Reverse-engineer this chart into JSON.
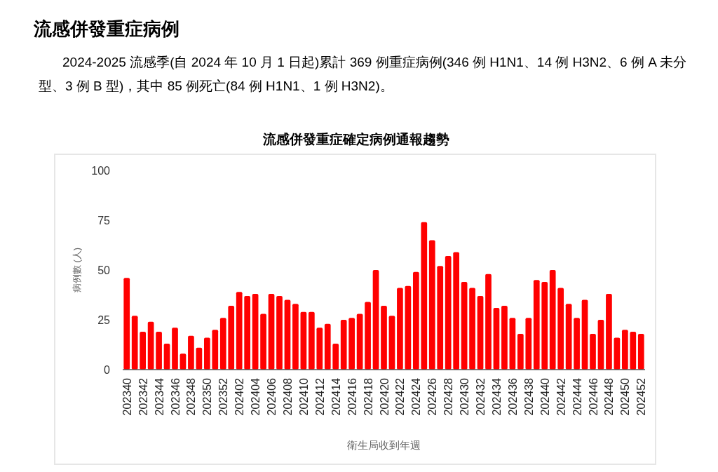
{
  "chart_data": {
    "type": "bar",
    "title": "流感併發重症確定病例通報趨勢",
    "annotations": [
      "流感併發重症病例",
      "2024-2025 流感季(自 2024 年 10 月 1 日起)累計 369 例重症病例(346 例 H1N1、14 例 H3N2、6 例 A 未分型、3 例 B 型)，其中 85 例死亡(84 例 H1N1、1 例 H3N2)。"
    ],
    "xlabel": "衛生局收到年週",
    "ylabel": "病例數 (人)",
    "categories": [
      "202340",
      null,
      "202342",
      null,
      "202344",
      null,
      "202346",
      null,
      "202348",
      null,
      "202350",
      null,
      "202352",
      null,
      "202402",
      null,
      "202404",
      null,
      "202406",
      null,
      "202408",
      null,
      "202410",
      null,
      "202412",
      null,
      "202414",
      null,
      "202416",
      null,
      "202418",
      null,
      "202420",
      null,
      "202422",
      null,
      "202424",
      null,
      "202426",
      null,
      "202428",
      null,
      "202430",
      null,
      "202432",
      null,
      "202434",
      null,
      "202436",
      null,
      "202438",
      null,
      "202440",
      null,
      "202442",
      null,
      "202444",
      null,
      "202446",
      null,
      "202448",
      null,
      "202450",
      null,
      "202452"
    ],
    "values": [
      46,
      27,
      19,
      24,
      19,
      13,
      21,
      8,
      17,
      11,
      16,
      20,
      26,
      32,
      39,
      37,
      38,
      28,
      38,
      37,
      35,
      33,
      29,
      29,
      21,
      23,
      13,
      25,
      26,
      28,
      34,
      50,
      32,
      27,
      41,
      42,
      49,
      74,
      65,
      52,
      57,
      59,
      44,
      41,
      37,
      48,
      31,
      32,
      26,
      18,
      26,
      45,
      44,
      50,
      41,
      33,
      26,
      35,
      18,
      25,
      38,
      16,
      20,
      19,
      18
    ],
    "color": "#ff0000",
    "ylim": [
      0,
      100
    ],
    "yticks": [
      0,
      25,
      50,
      75,
      100
    ],
    "grid": false
  }
}
